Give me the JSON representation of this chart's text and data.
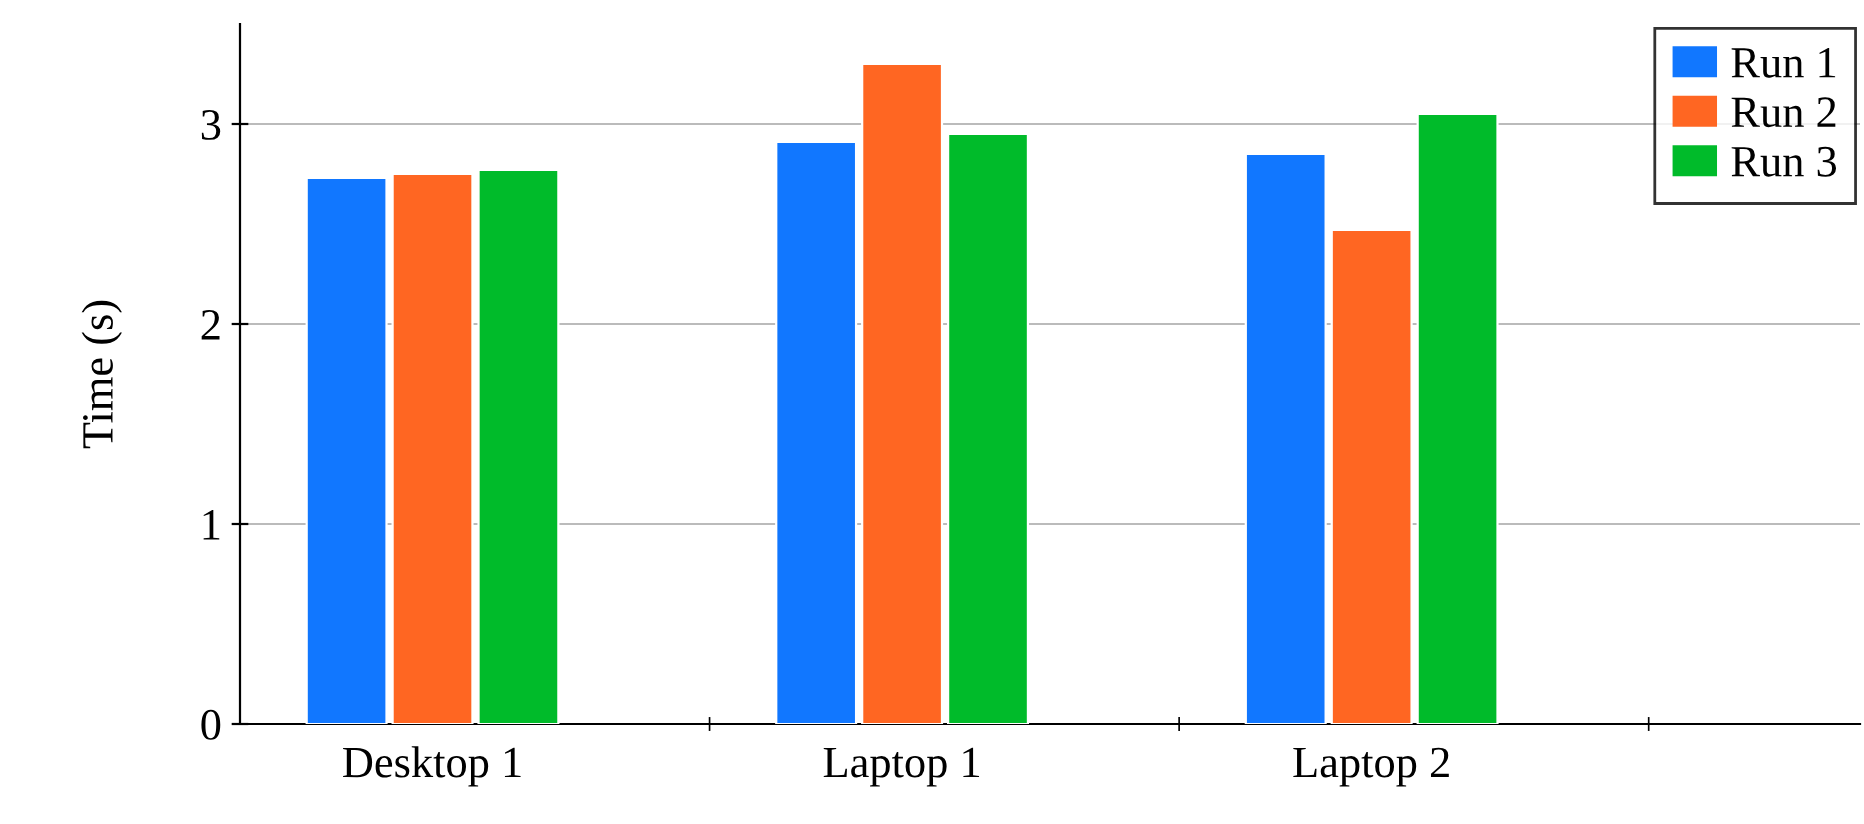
{
  "chart_data": {
    "type": "bar",
    "ylabel": "Time (s)",
    "categories": [
      "Desktop 1",
      "Laptop 1",
      "Laptop 2"
    ],
    "series": [
      {
        "name": "Run 1",
        "color": "#1177ff",
        "values": [
          2.73,
          2.91,
          2.85
        ]
      },
      {
        "name": "Run 2",
        "color": "#ff6622",
        "values": [
          2.75,
          3.3,
          2.47
        ]
      },
      {
        "name": "Run 3",
        "color": "#00bb2a",
        "values": [
          2.77,
          2.95,
          3.05
        ]
      }
    ],
    "ylim": [
      0,
      3.5
    ],
    "yticks": [
      0,
      1,
      2,
      3
    ],
    "grid": "y",
    "legend": "top right"
  }
}
